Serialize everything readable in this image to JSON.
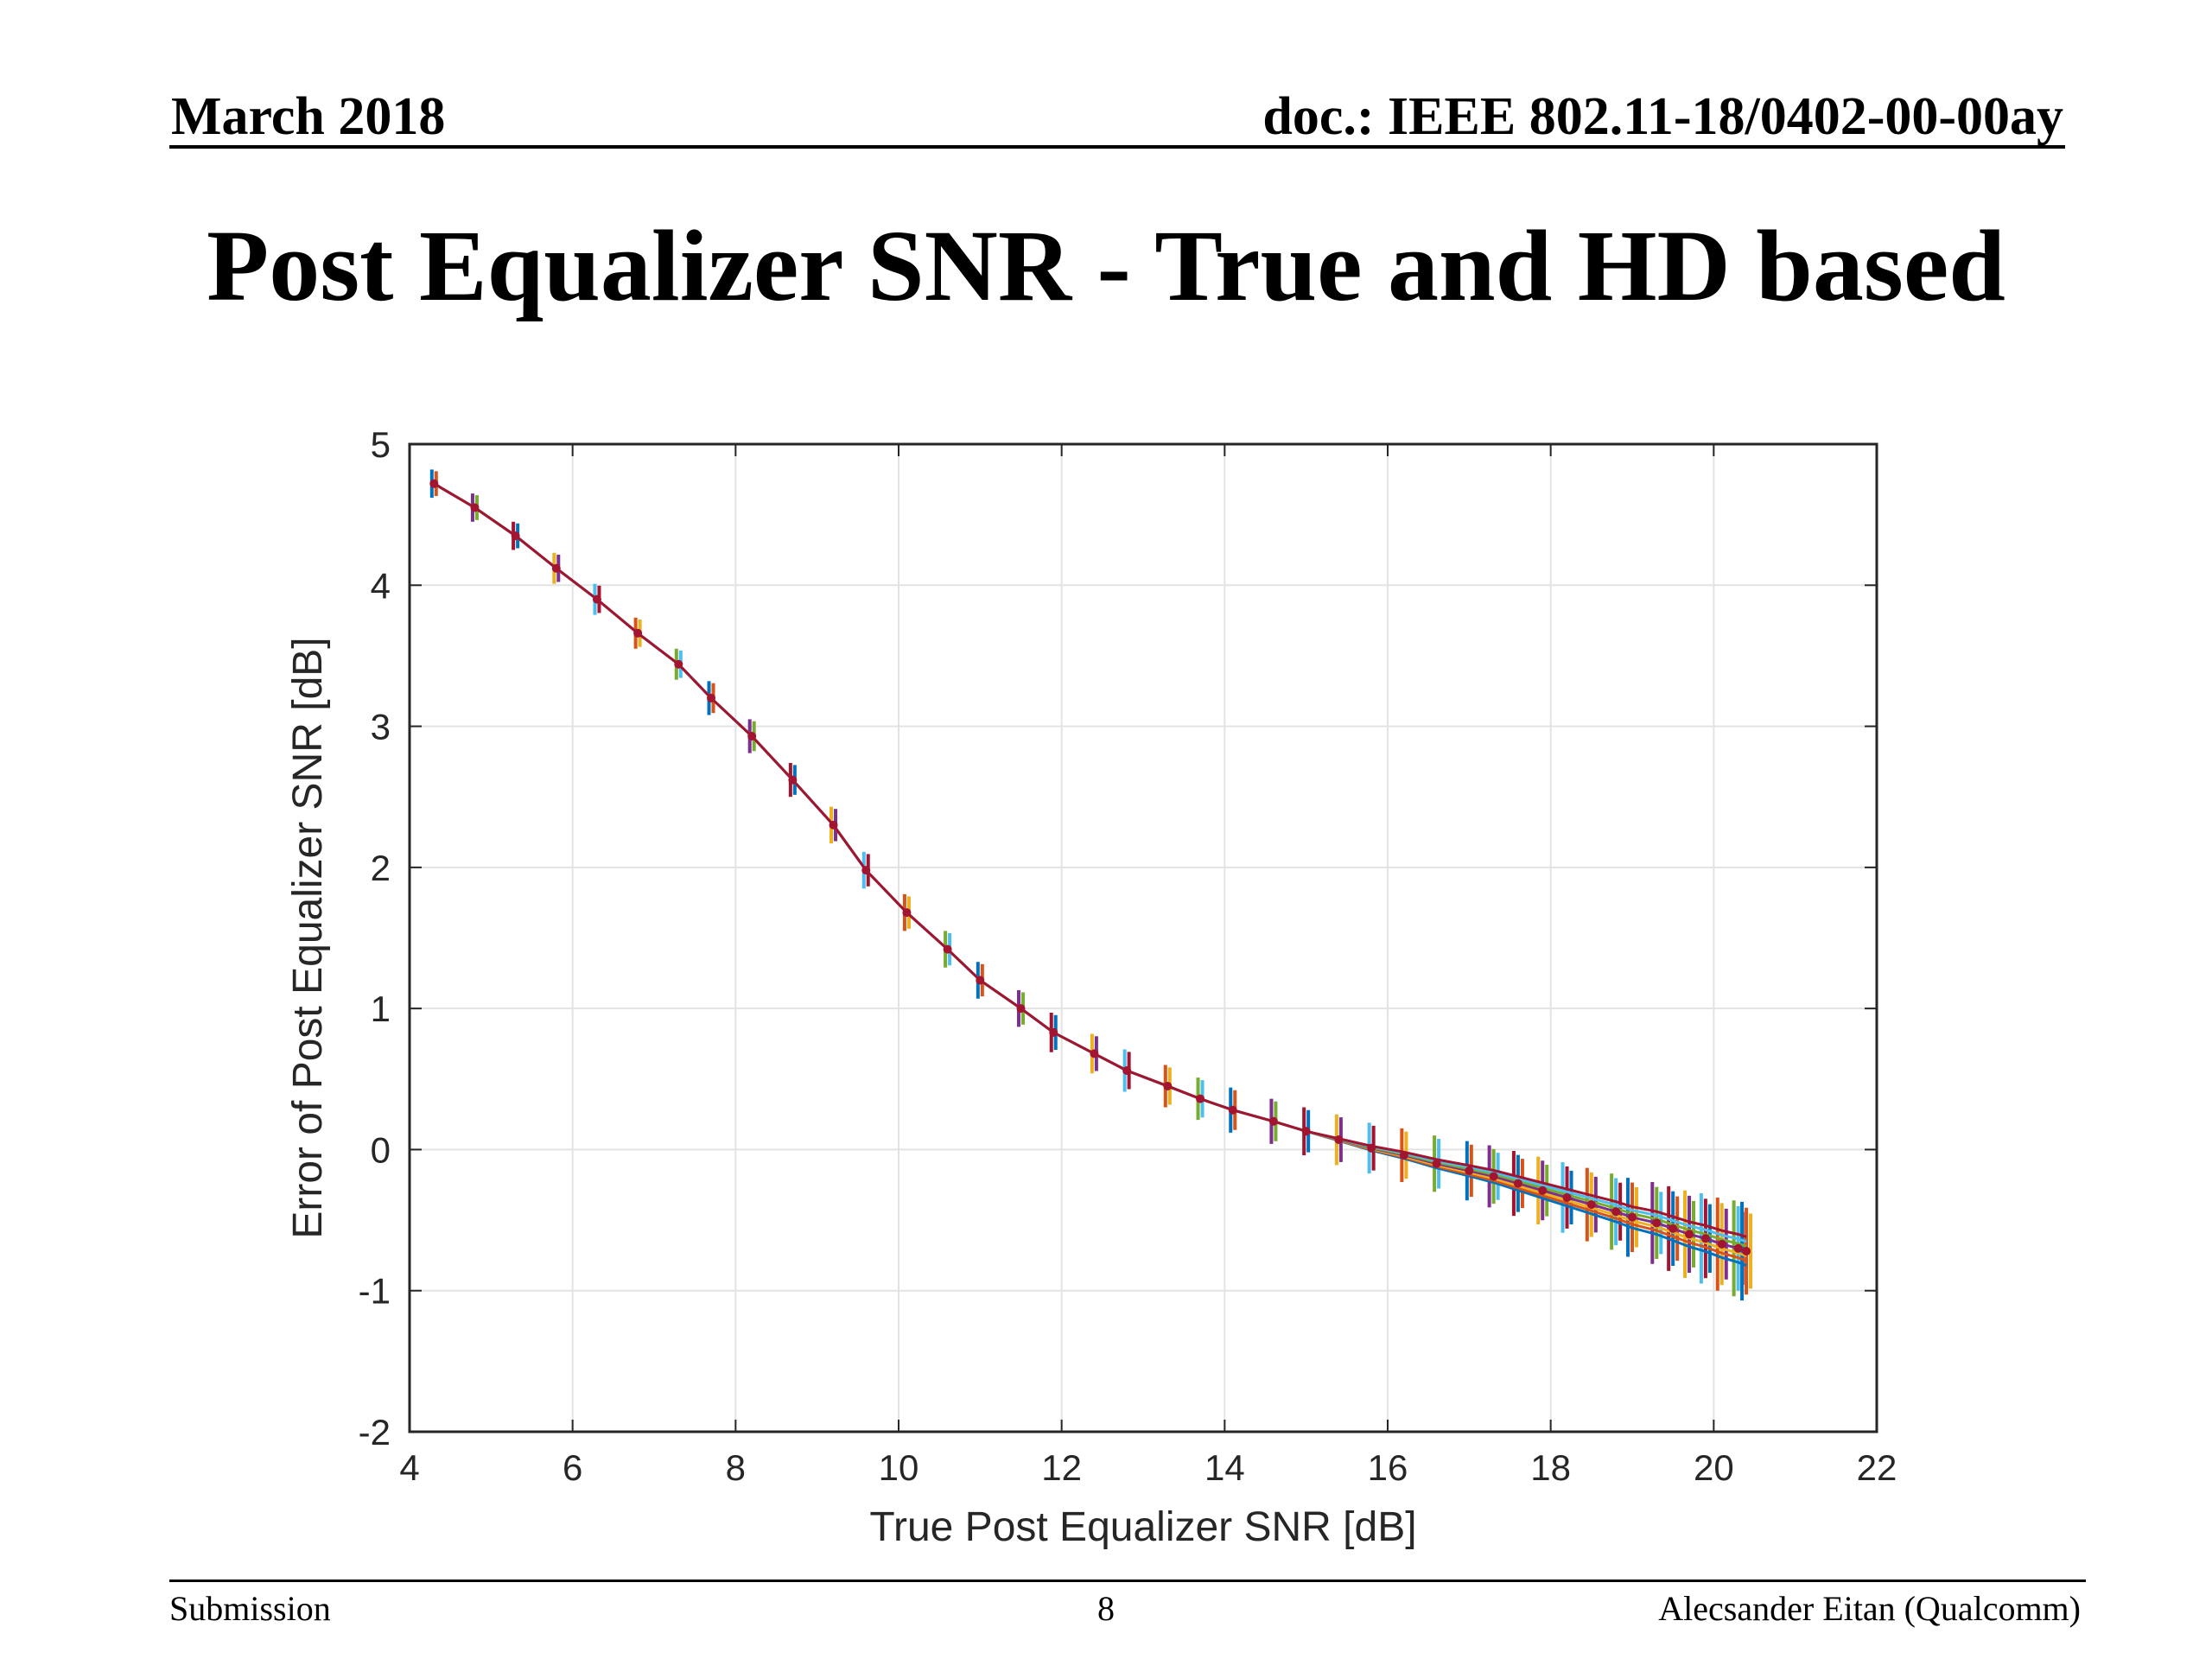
{
  "header": {
    "date": "March 2018",
    "doc": "doc.: IEEE 802.11-18/0402-00-00ay"
  },
  "slide": {
    "title": "Post Equalizer SNR - True and HD based"
  },
  "footer": {
    "left": "Submission",
    "page": "8",
    "author": "Alecsander Eitan (Qualcomm)"
  },
  "chart_data": {
    "type": "line",
    "xlabel": "True Post Equalizer SNR [dB]",
    "ylabel": "Error of Post Equalizer SNR [dB]",
    "xlim": [
      4,
      22
    ],
    "ylim": [
      -2,
      5
    ],
    "xticks": [
      4,
      6,
      8,
      10,
      12,
      14,
      16,
      18,
      20,
      22
    ],
    "yticks": [
      -2,
      -1,
      0,
      1,
      2,
      3,
      4,
      5
    ],
    "grid": true,
    "error_bars": true,
    "series_colors": [
      "#0072BD",
      "#D95319",
      "#EDB120",
      "#7E2F8E",
      "#77AC30",
      "#4DBEEE",
      "#A2142F"
    ],
    "x": [
      4.3,
      4.8,
      5.3,
      5.8,
      6.3,
      6.8,
      7.3,
      7.7,
      8.2,
      8.7,
      9.2,
      9.6,
      10.1,
      10.6,
      11.0,
      11.5,
      11.9,
      12.4,
      12.8,
      13.3,
      13.7,
      14.1,
      14.6,
      15.0,
      15.4,
      15.8,
      16.2,
      16.6,
      17.0,
      17.3,
      17.6,
      17.9,
      18.2,
      18.5,
      18.8,
      19.0,
      19.3,
      19.5,
      19.7,
      19.9,
      20.1,
      20.3,
      20.4
    ],
    "y": [
      4.72,
      4.55,
      4.35,
      4.12,
      3.9,
      3.66,
      3.44,
      3.2,
      2.93,
      2.62,
      2.3,
      1.98,
      1.68,
      1.42,
      1.2,
      1.0,
      0.83,
      0.68,
      0.56,
      0.45,
      0.36,
      0.28,
      0.2,
      0.13,
      0.07,
      0.01,
      -0.04,
      -0.1,
      -0.15,
      -0.19,
      -0.24,
      -0.29,
      -0.34,
      -0.39,
      -0.44,
      -0.48,
      -0.52,
      -0.56,
      -0.6,
      -0.63,
      -0.67,
      -0.7,
      -0.72
    ],
    "error_halfwidth": [
      0.1,
      0.1,
      0.1,
      0.11,
      0.11,
      0.11,
      0.11,
      0.12,
      0.12,
      0.12,
      0.13,
      0.13,
      0.13,
      0.13,
      0.13,
      0.13,
      0.14,
      0.14,
      0.15,
      0.15,
      0.15,
      0.16,
      0.16,
      0.17,
      0.18,
      0.18,
      0.19,
      0.2,
      0.21,
      0.22,
      0.23,
      0.24,
      0.25,
      0.26,
      0.27,
      0.28,
      0.29,
      0.3,
      0.31,
      0.32,
      0.33,
      0.34,
      0.35
    ]
  }
}
